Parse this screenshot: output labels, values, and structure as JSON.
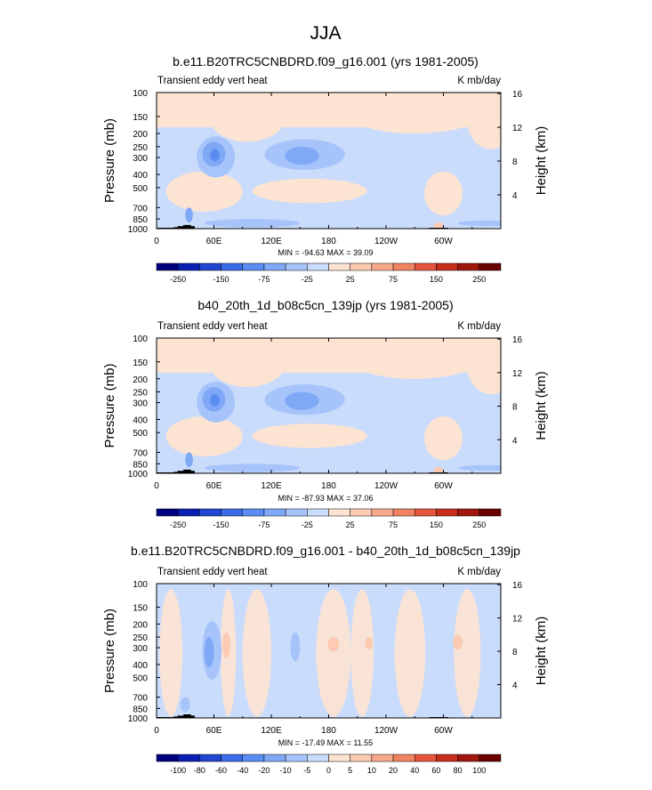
{
  "figure": {
    "title": "JJA"
  },
  "chart_data": [
    {
      "type": "heatmap",
      "title": "b.e11.B20TRC5CNBDRD.f09_g16.001 (yrs 1981-2005)",
      "left_label": "Transient eddy vert heat",
      "right_label": "K mb/day",
      "xlabel": "",
      "ylabel": "Pressure (mb)",
      "y2label": "Height (km)",
      "x_ticks": [
        "0",
        "60E",
        "120E",
        "180",
        "120W",
        "60W"
      ],
      "x_range": [
        0,
        360
      ],
      "y_ticks": [
        "100",
        "150",
        "200",
        "250",
        "300",
        "400",
        "500",
        "700",
        "850",
        "1000"
      ],
      "y_range": [
        1000,
        100
      ],
      "y2_ticks": [
        "16",
        "12",
        "8",
        "4"
      ],
      "stats": "MIN = -94.63  MAX = 39.09",
      "colorbar": {
        "levels": [
          "-250",
          "-150",
          "-75",
          "-25",
          "25",
          "75",
          "150",
          "250"
        ],
        "colors": [
          "#00007f",
          "#0a1fb2",
          "#2147d2",
          "#3b6be8",
          "#5a8cf1",
          "#7fa9f6",
          "#a6c4fa",
          "#cadcfc",
          "#fde3d2",
          "#fbcab0",
          "#f7a98a",
          "#f08462",
          "#e4553b",
          "#c92d1b",
          "#a0170e",
          "#6b0000"
        ]
      }
    },
    {
      "type": "heatmap",
      "title": "b40_20th_1d_b08c5cn_139jp (yrs 1981-2005)",
      "left_label": "Transient eddy vert heat",
      "right_label": "K mb/day",
      "xlabel": "",
      "ylabel": "Pressure (mb)",
      "y2label": "Height (km)",
      "x_ticks": [
        "0",
        "60E",
        "120E",
        "180",
        "120W",
        "60W"
      ],
      "x_range": [
        0,
        360
      ],
      "y_ticks": [
        "100",
        "150",
        "200",
        "250",
        "300",
        "400",
        "500",
        "700",
        "850",
        "1000"
      ],
      "y_range": [
        1000,
        100
      ],
      "y2_ticks": [
        "16",
        "12",
        "8",
        "4"
      ],
      "stats": "MIN = -87.93  MAX = 37.06",
      "colorbar": {
        "levels": [
          "-250",
          "-150",
          "-75",
          "-25",
          "25",
          "75",
          "150",
          "250"
        ],
        "colors": [
          "#00007f",
          "#0a1fb2",
          "#2147d2",
          "#3b6be8",
          "#5a8cf1",
          "#7fa9f6",
          "#a6c4fa",
          "#cadcfc",
          "#fde3d2",
          "#fbcab0",
          "#f7a98a",
          "#f08462",
          "#e4553b",
          "#c92d1b",
          "#a0170e",
          "#6b0000"
        ]
      }
    },
    {
      "type": "heatmap",
      "title": "b.e11.B20TRC5CNBDRD.f09_g16.001 - b40_20th_1d_b08c5cn_139jp",
      "left_label": "Transient eddy vert heat",
      "right_label": "K mb/day",
      "xlabel": "",
      "ylabel": "Pressure (mb)",
      "y2label": "Height (km)",
      "x_ticks": [
        "0",
        "60E",
        "120E",
        "180",
        "120W",
        "60W"
      ],
      "x_range": [
        0,
        360
      ],
      "y_ticks": [
        "100",
        "150",
        "200",
        "250",
        "300",
        "400",
        "500",
        "700",
        "850",
        "1000"
      ],
      "y_range": [
        1000,
        100
      ],
      "y2_ticks": [
        "16",
        "12",
        "8",
        "4"
      ],
      "stats": "MIN = -17.49  MAX = 11.55",
      "colorbar": {
        "levels": [
          "-100",
          "-80",
          "-60",
          "-40",
          "-20",
          "-10",
          "-5",
          "0",
          "5",
          "10",
          "20",
          "40",
          "60",
          "80",
          "100"
        ],
        "colors": [
          "#00007f",
          "#0a1fb2",
          "#2147d2",
          "#3b6be8",
          "#5a8cf1",
          "#7fa9f6",
          "#a6c4fa",
          "#cadcfc",
          "#fde3d2",
          "#fbcab0",
          "#f7a98a",
          "#f08462",
          "#e4553b",
          "#c92d1b",
          "#a0170e",
          "#6b0000"
        ]
      }
    }
  ]
}
